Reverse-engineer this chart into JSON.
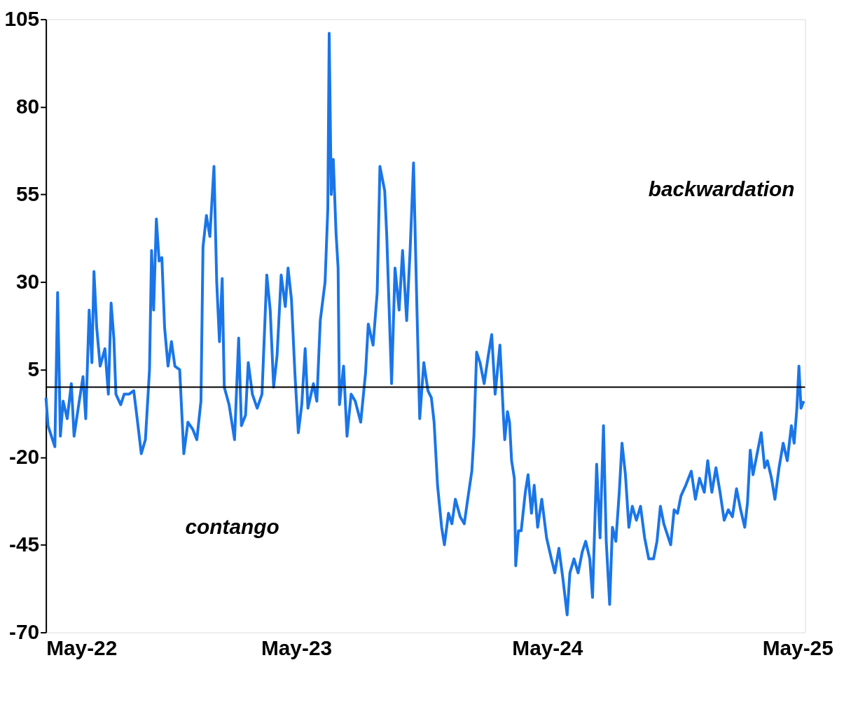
{
  "chart_data": {
    "type": "line",
    "ylim": [
      -70,
      105
    ],
    "yticks": [
      -70,
      -45,
      -20,
      5,
      30,
      55,
      80,
      105
    ],
    "xlim": [
      "2022-05-01",
      "2025-05-12"
    ],
    "xticks": [
      {
        "value": "2022-05-01",
        "label": "May-22"
      },
      {
        "value": "2023-05-01",
        "label": "May-23"
      },
      {
        "value": "2024-05-01",
        "label": "May-24"
      },
      {
        "value": "2025-05-01",
        "label": "May-25"
      }
    ],
    "grid": false,
    "legend": false,
    "marker": "none",
    "line_style": "solid",
    "annotations": [
      "backwardation",
      "contango"
    ],
    "ref_lines": [
      {
        "axis": "y",
        "value": 0,
        "label": null,
        "color": "#000000"
      }
    ],
    "x": [
      "2022-05-01",
      "2022-05-04",
      "2022-05-09",
      "2022-05-14",
      "2022-05-18",
      "2022-05-22",
      "2022-05-26",
      "2022-06-01",
      "2022-06-07",
      "2022-06-11",
      "2022-06-17",
      "2022-06-24",
      "2022-06-28",
      "2022-07-03",
      "2022-07-07",
      "2022-07-10",
      "2022-07-14",
      "2022-07-19",
      "2022-07-26",
      "2022-07-31",
      "2022-08-04",
      "2022-08-08",
      "2022-08-11",
      "2022-08-18",
      "2022-08-23",
      "2022-08-30",
      "2022-09-06",
      "2022-09-11",
      "2022-09-17",
      "2022-09-23",
      "2022-09-29",
      "2022-10-02",
      "2022-10-05",
      "2022-10-09",
      "2022-10-13",
      "2022-10-17",
      "2022-10-21",
      "2022-10-26",
      "2022-10-31",
      "2022-11-05",
      "2022-11-12",
      "2022-11-18",
      "2022-11-24",
      "2022-12-01",
      "2022-12-07",
      "2022-12-13",
      "2022-12-16",
      "2022-12-21",
      "2022-12-26",
      "2023-01-01",
      "2023-01-05",
      "2023-01-09",
      "2023-01-13",
      "2023-01-16",
      "2023-01-23",
      "2023-01-31",
      "2023-02-06",
      "2023-02-10",
      "2023-02-16",
      "2023-02-20",
      "2023-02-26",
      "2023-03-05",
      "2023-03-12",
      "2023-03-19",
      "2023-03-24",
      "2023-03-29",
      "2023-04-03",
      "2023-04-09",
      "2023-04-15",
      "2023-04-19",
      "2023-04-24",
      "2023-04-29",
      "2023-05-04",
      "2023-05-09",
      "2023-05-14",
      "2023-05-18",
      "2023-05-26",
      "2023-05-31",
      "2023-06-05",
      "2023-06-12",
      "2023-06-16",
      "2023-06-18",
      "2023-06-21",
      "2023-06-24",
      "2023-06-28",
      "2023-07-01",
      "2023-07-03",
      "2023-07-09",
      "2023-07-14",
      "2023-07-20",
      "2023-07-26",
      "2023-08-03",
      "2023-08-10",
      "2023-08-14",
      "2023-08-21",
      "2023-08-27",
      "2023-08-31",
      "2023-09-07",
      "2023-09-10",
      "2023-09-17",
      "2023-09-22",
      "2023-09-28",
      "2023-10-03",
      "2023-10-09",
      "2023-10-14",
      "2023-10-19",
      "2023-10-24",
      "2023-10-28",
      "2023-11-03",
      "2023-11-09",
      "2023-11-14",
      "2023-11-18",
      "2023-11-23",
      "2023-11-29",
      "2023-12-03",
      "2023-12-09",
      "2023-12-14",
      "2023-12-19",
      "2023-12-26",
      "2024-01-01",
      "2024-01-06",
      "2024-01-12",
      "2024-01-15",
      "2024-01-19",
      "2024-01-24",
      "2024-01-30",
      "2024-02-05",
      "2024-02-10",
      "2024-02-15",
      "2024-02-22",
      "2024-02-27",
      "2024-02-29",
      "2024-03-04",
      "2024-03-07",
      "2024-03-10",
      "2024-03-14",
      "2024-03-16",
      "2024-03-20",
      "2024-03-24",
      "2024-03-30",
      "2024-04-03",
      "2024-04-08",
      "2024-04-12",
      "2024-04-17",
      "2024-04-23",
      "2024-04-30",
      "2024-05-07",
      "2024-05-12",
      "2024-05-18",
      "2024-05-24",
      "2024-05-30",
      "2024-06-03",
      "2024-06-09",
      "2024-06-15",
      "2024-06-21",
      "2024-06-26",
      "2024-07-02",
      "2024-07-06",
      "2024-07-12",
      "2024-07-17",
      "2024-07-22",
      "2024-07-26",
      "2024-07-31",
      "2024-08-04",
      "2024-08-09",
      "2024-08-14",
      "2024-08-18",
      "2024-08-23",
      "2024-08-28",
      "2024-09-02",
      "2024-09-08",
      "2024-09-14",
      "2024-09-20",
      "2024-09-26",
      "2024-10-03",
      "2024-10-08",
      "2024-10-13",
      "2024-10-18",
      "2024-10-23",
      "2024-10-28",
      "2024-11-02",
      "2024-11-07",
      "2024-11-12",
      "2024-11-19",
      "2024-11-27",
      "2024-12-03",
      "2024-12-09",
      "2024-12-16",
      "2024-12-21",
      "2024-12-27",
      "2025-01-02",
      "2025-01-08",
      "2025-01-14",
      "2025-01-20",
      "2025-01-26",
      "2025-02-01",
      "2025-02-07",
      "2025-02-13",
      "2025-02-17",
      "2025-02-21",
      "2025-02-25",
      "2025-03-03",
      "2025-03-09",
      "2025-03-14",
      "2025-03-18",
      "2025-03-24",
      "2025-03-29",
      "2025-04-04",
      "2025-04-10",
      "2025-04-16",
      "2025-04-22",
      "2025-04-26",
      "2025-04-30",
      "2025-05-03",
      "2025-05-06",
      "2025-05-10"
    ],
    "series": [
      {
        "color": "#1a75e8",
        "values": [
          -3,
          -11,
          -14,
          -17,
          27,
          -14,
          -4,
          -9,
          1,
          -14,
          -6,
          3,
          -9,
          22,
          7,
          33,
          17,
          6,
          11,
          -2,
          24,
          14,
          -2,
          -5,
          -2,
          -2,
          -1,
          -9,
          -19,
          -15,
          5,
          39,
          22,
          48,
          36,
          37,
          17,
          6,
          13,
          6,
          5,
          -19,
          -10,
          -12,
          -15,
          -4,
          40,
          49,
          43,
          63,
          30,
          13,
          31,
          0,
          -5,
          -15,
          14,
          -11,
          -8,
          7,
          -2,
          -6,
          -2,
          32,
          22,
          0,
          9,
          32,
          23,
          34,
          25,
          4,
          -13,
          -5,
          11,
          -6,
          1,
          -4,
          19,
          30,
          51,
          101,
          55,
          65,
          44,
          34,
          -5,
          6,
          -14,
          -2,
          -4,
          -10,
          4,
          18,
          12,
          27,
          63,
          56,
          43,
          1,
          34,
          22,
          39,
          19,
          39,
          64,
          22,
          -9,
          7,
          -1,
          -3,
          -10,
          -28,
          -40,
          -45,
          -36,
          -39,
          -32,
          -37,
          -39,
          -32,
          -24,
          -14,
          10,
          7,
          1,
          9,
          15,
          -2,
          12,
          -8,
          -15,
          -7,
          -10,
          -21,
          -26,
          -51,
          -41,
          -41,
          -30,
          -25,
          -36,
          -28,
          -40,
          -32,
          -43,
          -49,
          -53,
          -46,
          -55,
          -65,
          -53,
          -49,
          -53,
          -47,
          -44,
          -49,
          -60,
          -22,
          -43,
          -11,
          -44,
          -62,
          -40,
          -44,
          -30,
          -16,
          -25,
          -40,
          -34,
          -38,
          -34,
          -43,
          -49,
          -49,
          -44,
          -34,
          -39,
          -42,
          -45,
          -35,
          -36,
          -31,
          -28,
          -24,
          -32,
          -26,
          -30,
          -21,
          -30,
          -23,
          -30,
          -38,
          -35,
          -37,
          -29,
          -35,
          -40,
          -33,
          -18,
          -25,
          -19,
          -13,
          -23,
          -21,
          -26,
          -32,
          -23,
          -16,
          -21,
          -11,
          -16,
          -6,
          6,
          -6,
          -4
        ]
      }
    ]
  }
}
